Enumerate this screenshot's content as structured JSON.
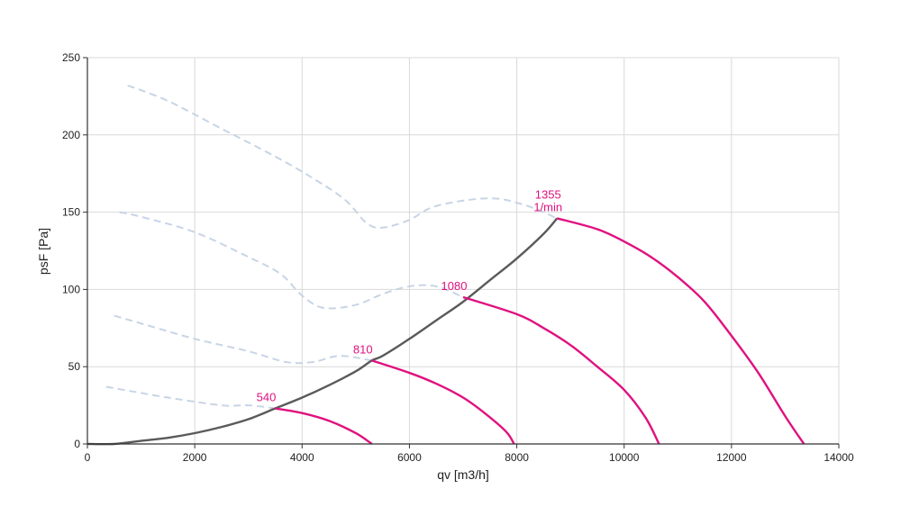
{
  "chart_data": {
    "type": "line",
    "title": "",
    "xlabel": "qv [m3/h]",
    "ylabel": "psF [Pa]",
    "xlim": [
      0,
      14000
    ],
    "ylim": [
      0,
      250
    ],
    "x_ticks": [
      "0",
      "2000",
      "4000",
      "6000",
      "8000",
      "10000",
      "12000",
      "14000"
    ],
    "y_ticks": [
      "0",
      "50",
      "100",
      "150",
      "200",
      "250"
    ],
    "grid": true,
    "colors": {
      "speed_curve": "#e0117f",
      "system_curve": "#5a5a5a",
      "extension_curve": "#c8d4e6",
      "grid": "#d9d9d9",
      "axis": "#333333"
    },
    "speed_curves": [
      {
        "label_lines": [
          "540"
        ],
        "points": [
          [
            3500,
            23
          ],
          [
            4000,
            20
          ],
          [
            4500,
            15
          ],
          [
            5000,
            7
          ],
          [
            5300,
            0
          ]
        ]
      },
      {
        "label_lines": [
          "810"
        ],
        "points": [
          [
            5300,
            54
          ],
          [
            6000,
            46
          ],
          [
            6500,
            39
          ],
          [
            7000,
            30
          ],
          [
            7400,
            20
          ],
          [
            7800,
            8
          ],
          [
            7950,
            0
          ]
        ]
      },
      {
        "label_lines": [
          "1080"
        ],
        "points": [
          [
            7000,
            95
          ],
          [
            8000,
            84
          ],
          [
            8500,
            75
          ],
          [
            9000,
            64
          ],
          [
            9500,
            50
          ],
          [
            10000,
            35
          ],
          [
            10400,
            17
          ],
          [
            10650,
            0
          ]
        ]
      },
      {
        "label_lines": [
          "1355",
          "1/min"
        ],
        "points": [
          [
            8750,
            146
          ],
          [
            9500,
            139
          ],
          [
            10000,
            131
          ],
          [
            10500,
            121
          ],
          [
            11000,
            108
          ],
          [
            11500,
            92
          ],
          [
            12000,
            70
          ],
          [
            12500,
            46
          ],
          [
            13000,
            18
          ],
          [
            13350,
            0
          ]
        ]
      }
    ],
    "system_curve": {
      "points": [
        [
          0,
          0
        ],
        [
          500,
          0
        ],
        [
          1000,
          2
        ],
        [
          1500,
          4
        ],
        [
          2000,
          7
        ],
        [
          2500,
          11
        ],
        [
          3000,
          16
        ],
        [
          3500,
          23
        ],
        [
          4000,
          30
        ],
        [
          4500,
          38
        ],
        [
          5000,
          47
        ],
        [
          5300,
          54
        ],
        [
          5500,
          57
        ],
        [
          6000,
          68
        ],
        [
          6500,
          80
        ],
        [
          7000,
          92
        ],
        [
          7500,
          106
        ],
        [
          8000,
          120
        ],
        [
          8500,
          136
        ],
        [
          8750,
          146
        ]
      ]
    },
    "extension_curves": [
      {
        "points": [
          [
            350,
            37
          ],
          [
            1000,
            33
          ],
          [
            1500,
            30
          ],
          [
            2500,
            25
          ],
          [
            3000,
            25
          ],
          [
            3500,
            23
          ]
        ]
      },
      {
        "points": [
          [
            500,
            83
          ],
          [
            1000,
            78
          ],
          [
            2000,
            68
          ],
          [
            3000,
            60
          ],
          [
            3700,
            53
          ],
          [
            4200,
            53
          ],
          [
            4700,
            57
          ],
          [
            5300,
            54
          ]
        ]
      },
      {
        "points": [
          [
            600,
            150
          ],
          [
            1000,
            147
          ],
          [
            2000,
            137
          ],
          [
            3000,
            121
          ],
          [
            3600,
            110
          ],
          [
            4000,
            96
          ],
          [
            4400,
            88
          ],
          [
            5000,
            90
          ],
          [
            5500,
            97
          ],
          [
            6000,
            102
          ],
          [
            6500,
            102
          ],
          [
            7000,
            95
          ]
        ]
      },
      {
        "points": [
          [
            750,
            232
          ],
          [
            1500,
            222
          ],
          [
            2500,
            204
          ],
          [
            3500,
            186
          ],
          [
            4200,
            172
          ],
          [
            4800,
            158
          ],
          [
            5200,
            143
          ],
          [
            5500,
            140
          ],
          [
            6000,
            145
          ],
          [
            6500,
            154
          ],
          [
            7500,
            159
          ],
          [
            8200,
            154
          ],
          [
            8750,
            146
          ]
        ]
      }
    ]
  }
}
